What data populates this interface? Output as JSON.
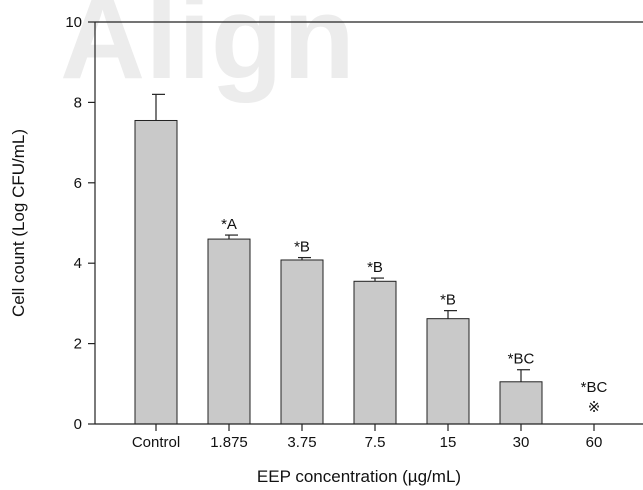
{
  "watermark": {
    "text": "Align"
  },
  "chart_data": {
    "type": "bar",
    "categories": [
      "Control",
      "1.875",
      "3.75",
      "7.5",
      "15",
      "30",
      "60"
    ],
    "values": [
      7.55,
      4.6,
      4.08,
      3.55,
      2.62,
      1.05,
      0
    ],
    "errors": [
      0.65,
      0.1,
      0.06,
      0.08,
      0.2,
      0.3,
      0
    ],
    "annotations": [
      "",
      "*A",
      "*B",
      "*B",
      "*B",
      "*BC",
      "*BC"
    ],
    "zero_markers": [
      "",
      "",
      "",
      "",
      "",
      "",
      "※"
    ],
    "xlabel": "EEP concentration (µg/mL)",
    "ylabel": "Cell count (Log CFU/mL)",
    "ylim": [
      0,
      10
    ],
    "yticks": [
      "0",
      "2",
      "4",
      "6",
      "8",
      "10"
    ],
    "grid": false
  }
}
